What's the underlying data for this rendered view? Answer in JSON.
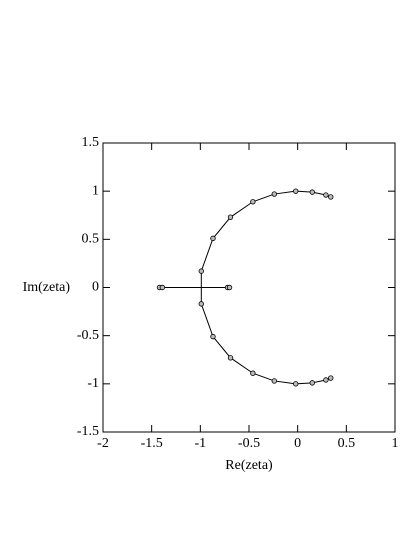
{
  "chart_data": {
    "type": "scatter-line",
    "x_label": "Re(zeta)",
    "y_label": "Im(zeta)",
    "xlim": [
      -2,
      1
    ],
    "ylim": [
      -1.5,
      1.5
    ],
    "xticks": [
      -2,
      -1.5,
      -1,
      -0.5,
      0,
      0.5,
      1
    ],
    "yticks": [
      -1.5,
      -1,
      -0.5,
      0,
      0.5,
      1,
      1.5
    ],
    "color": "#000000",
    "series": [
      {
        "x": [
          0.34,
          0.29,
          0.15,
          -0.02,
          -0.24,
          -0.46,
          -0.69,
          -0.87,
          -0.99,
          -0.99,
          -0.87,
          -0.69,
          -0.46,
          -0.24,
          -0.02,
          0.15,
          0.29,
          0.34
        ],
        "y": [
          0.94,
          0.96,
          0.99,
          1.0,
          0.97,
          0.89,
          0.73,
          0.51,
          0.17,
          -0.17,
          -0.51,
          -0.73,
          -0.89,
          -0.97,
          -1.0,
          -0.99,
          -0.96,
          -0.94
        ]
      },
      {
        "x": [
          -1.42,
          -1.39,
          -0.72,
          -0.7
        ],
        "y": [
          0,
          0,
          0,
          0
        ]
      }
    ]
  }
}
